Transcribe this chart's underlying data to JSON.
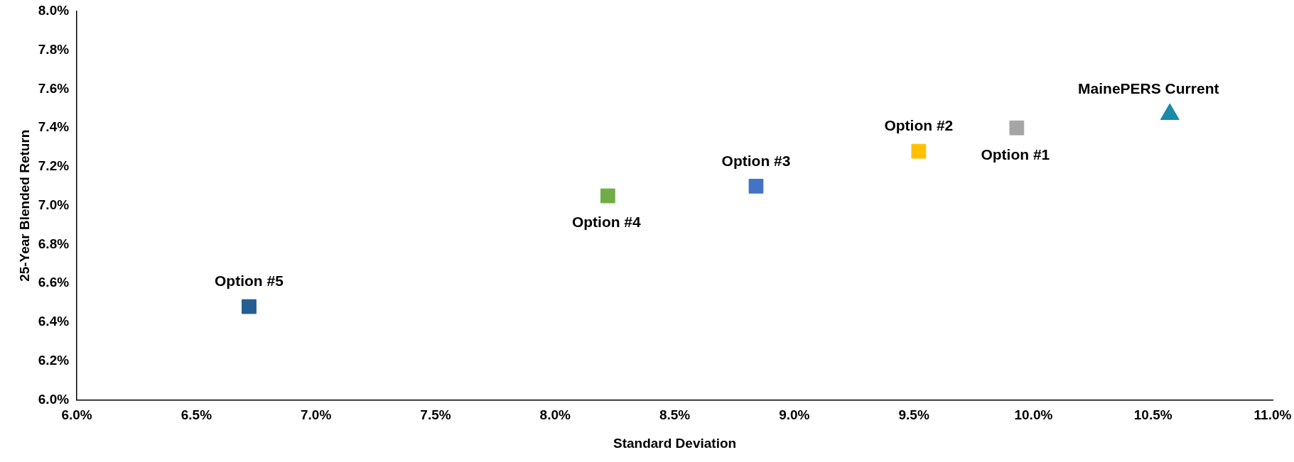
{
  "chart_data": {
    "type": "scatter",
    "xlabel": "Standard Deviation",
    "ylabel": "25-Year Blended Return",
    "xlim": [
      6,
      11
    ],
    "ylim": [
      6,
      8
    ],
    "xticks": [
      {
        "value": 6,
        "label": "6.0%"
      },
      {
        "value": 6.5,
        "label": "6.5%"
      },
      {
        "value": 7,
        "label": "7.0%"
      },
      {
        "value": 7.5,
        "label": "7.5%"
      },
      {
        "value": 8,
        "label": "8.0%"
      },
      {
        "value": 8.5,
        "label": "8.5%"
      },
      {
        "value": 9,
        "label": "9.0%"
      },
      {
        "value": 9.5,
        "label": "9.5%"
      },
      {
        "value": 10,
        "label": "10.0%"
      },
      {
        "value": 10.5,
        "label": "10.5%"
      },
      {
        "value": 11,
        "label": "11.0%"
      }
    ],
    "yticks": [
      {
        "value": 6,
        "label": "6.0%"
      },
      {
        "value": 6.2,
        "label": "6.2%"
      },
      {
        "value": 6.4,
        "label": "6.4%"
      },
      {
        "value": 6.6,
        "label": "6.6%"
      },
      {
        "value": 6.8,
        "label": "6.8%"
      },
      {
        "value": 7,
        "label": "7.0%"
      },
      {
        "value": 7.2,
        "label": "7.2%"
      },
      {
        "value": 7.4,
        "label": "7.4%"
      },
      {
        "value": 7.6,
        "label": "7.6%"
      },
      {
        "value": 7.8,
        "label": "7.8%"
      },
      {
        "value": 8,
        "label": "8.0%"
      }
    ],
    "grid": false,
    "legend": false,
    "series": [
      {
        "name": "Option #5",
        "color": "#255e91",
        "marker": "square",
        "x": [
          6.72
        ],
        "values": [
          6.48
        ]
      },
      {
        "name": "Option #4",
        "color": "#70ad47",
        "marker": "square",
        "x": [
          8.22
        ],
        "values": [
          7.05
        ]
      },
      {
        "name": "Option #3",
        "color": "#4472c4",
        "marker": "square",
        "x": [
          8.84
        ],
        "values": [
          7.1
        ]
      },
      {
        "name": "Option #2",
        "color": "#ffc000",
        "marker": "square",
        "x": [
          9.52
        ],
        "values": [
          7.28
        ]
      },
      {
        "name": "Option #1",
        "color": "#a5a5a5",
        "marker": "square",
        "x": [
          9.93
        ],
        "values": [
          7.4
        ]
      },
      {
        "name": "MainePERS Current",
        "color": "#1a8aa8",
        "marker": "triangle",
        "x": [
          10.57
        ],
        "values": [
          7.47
        ]
      }
    ]
  }
}
